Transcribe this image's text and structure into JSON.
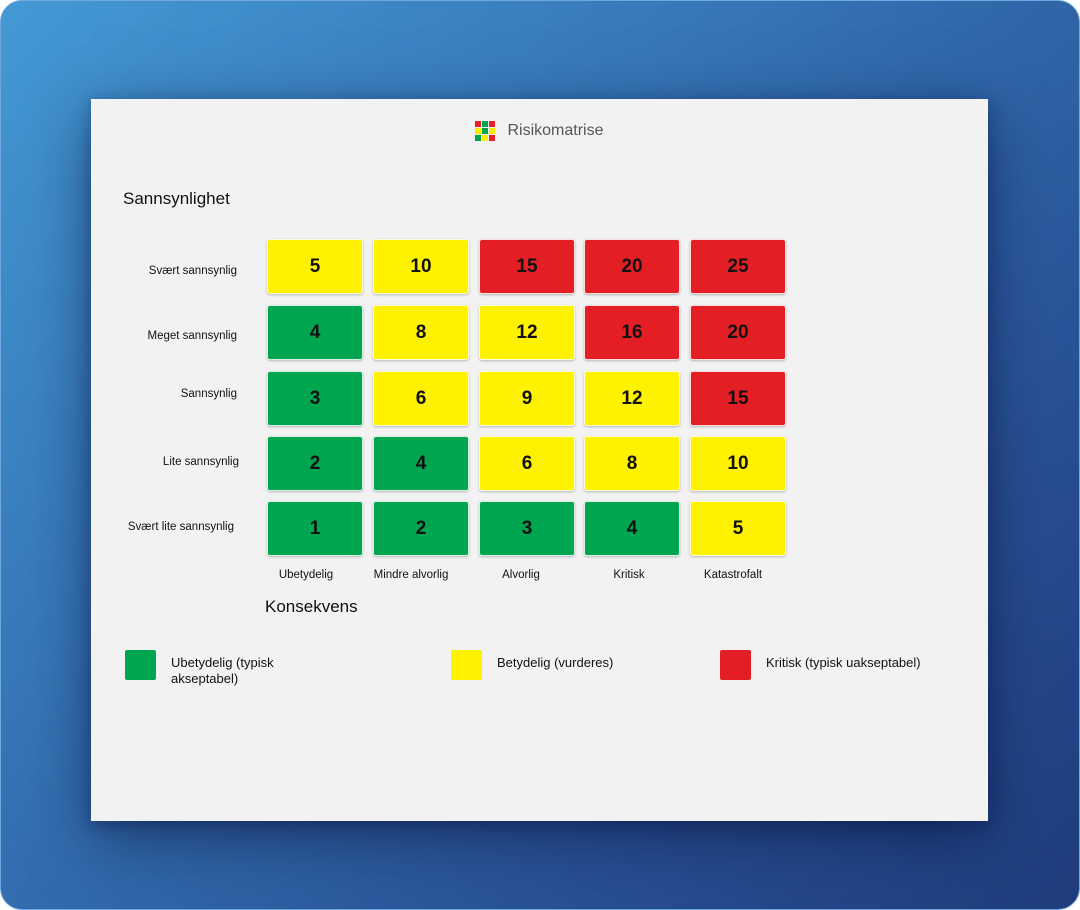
{
  "app": {
    "title": "Risikomatrise",
    "icon": "risk-matrix-icon",
    "icon_colors": [
      "#e62227",
      "#00a54f",
      "#e62227",
      "#ffec00",
      "#00a54f",
      "#ffec00",
      "#00a54f",
      "#ffec00",
      "#e62227"
    ]
  },
  "colors": {
    "green": "#00a54f",
    "yellow": "#fff200",
    "red": "#e31e24"
  },
  "matrix": {
    "y_title": "Sannsynlighet",
    "x_title": "Konsekvens",
    "rows": [
      {
        "label": "Svært sannsynlig",
        "cells": [
          {
            "value": "5",
            "level": "yellow"
          },
          {
            "value": "10",
            "level": "yellow"
          },
          {
            "value": "15",
            "level": "red"
          },
          {
            "value": "20",
            "level": "red"
          },
          {
            "value": "25",
            "level": "red"
          }
        ]
      },
      {
        "label": "Meget sannsynlig",
        "cells": [
          {
            "value": "4",
            "level": "green"
          },
          {
            "value": "8",
            "level": "yellow"
          },
          {
            "value": "12",
            "level": "yellow"
          },
          {
            "value": "16",
            "level": "red"
          },
          {
            "value": "20",
            "level": "red"
          }
        ]
      },
      {
        "label": "Sannsynlig",
        "cells": [
          {
            "value": "3",
            "level": "green"
          },
          {
            "value": "6",
            "level": "yellow"
          },
          {
            "value": "9",
            "level": "yellow"
          },
          {
            "value": "12",
            "level": "yellow"
          },
          {
            "value": "15",
            "level": "red"
          }
        ]
      },
      {
        "label": "Lite sannsynlig",
        "cells": [
          {
            "value": "2",
            "level": "green"
          },
          {
            "value": "4",
            "level": "green"
          },
          {
            "value": "6",
            "level": "yellow"
          },
          {
            "value": "8",
            "level": "yellow"
          },
          {
            "value": "10",
            "level": "yellow"
          }
        ]
      },
      {
        "label": "Svært lite sannsynlig",
        "cells": [
          {
            "value": "1",
            "level": "green"
          },
          {
            "value": "2",
            "level": "green"
          },
          {
            "value": "3",
            "level": "green"
          },
          {
            "value": "4",
            "level": "green"
          },
          {
            "value": "5",
            "level": "yellow"
          }
        ]
      }
    ],
    "columns": [
      "Ubetydelig",
      "Mindre alvorlig",
      "Alvorlig",
      "Kritisk",
      "Katastrofalt"
    ]
  },
  "legend": [
    {
      "label": "Ubetydelig (typisk akseptabel)",
      "level": "green"
    },
    {
      "label": "Betydelig (vurderes)",
      "level": "yellow"
    },
    {
      "label": "Kritisk (typisk uakseptabel)",
      "level": "red"
    }
  ]
}
